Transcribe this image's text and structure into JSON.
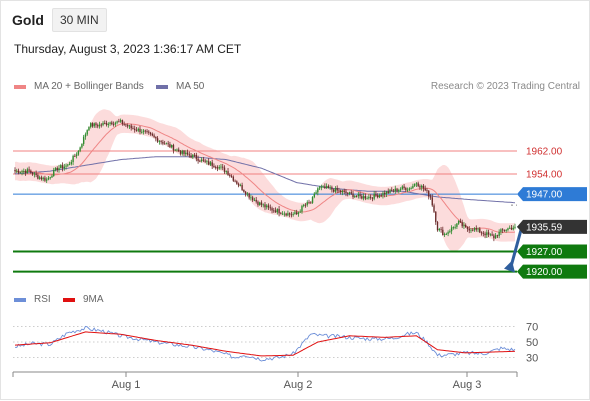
{
  "toolbar": {
    "symbol": "Gold",
    "interval": "30 MIN",
    "datetime": "Thursday, August 3, 2023 1:36:17 AM CET"
  },
  "legend": {
    "ma20": "MA 20 + Bollinger Bands",
    "ma50": "MA 50",
    "rsi": "RSI",
    "ma9": "9MA",
    "research": "Research © 2023 Trading Central"
  },
  "colors": {
    "ma20": "#ef8585",
    "bollinger_fill": "#fcd6d6",
    "ma50": "#7070a8",
    "resistance": "#f08080",
    "pivot": "#2e7bd6",
    "support": "#0f7a0f",
    "last_price": "#333333",
    "candle_up": "#2e8b2e",
    "candle_down": "#6b2a2a",
    "rsi": "#6d8fd8",
    "rsi_ma": "#e01010",
    "forecast_arrow": "#2f5e9e"
  },
  "chart_data": {
    "type": "candlestick",
    "instrument": "Gold",
    "timeframe": "30 MIN",
    "x_labels": [
      "Aug 1",
      "Aug 2",
      "Aug 3"
    ],
    "y_range": [
      1915,
      1978
    ],
    "levels": [
      {
        "label": "1962.00",
        "value": 1962.0,
        "kind": "resistance"
      },
      {
        "label": "1954.00",
        "value": 1954.0,
        "kind": "resistance"
      },
      {
        "label": "1947.00",
        "value": 1947.0,
        "kind": "pivot"
      },
      {
        "label": "1935.59",
        "value": 1935.59,
        "kind": "last"
      },
      {
        "label": "1927.00",
        "value": 1927.0,
        "kind": "support"
      },
      {
        "label": "1920.00",
        "value": 1920.0,
        "kind": "support"
      }
    ],
    "forecast": {
      "from": 1935.59,
      "to": 1920.0,
      "direction": "down"
    },
    "price_anchors": [
      {
        "x": 0,
        "p": 1955
      },
      {
        "x": 8,
        "p": 1955
      },
      {
        "x": 13,
        "p": 1953
      },
      {
        "x": 18,
        "p": 1952
      },
      {
        "x": 24,
        "p": 1956
      },
      {
        "x": 30,
        "p": 1957
      },
      {
        "x": 36,
        "p": 1962
      },
      {
        "x": 42,
        "p": 1971
      },
      {
        "x": 48,
        "p": 1971
      },
      {
        "x": 54,
        "p": 1972
      },
      {
        "x": 60,
        "p": 1972
      },
      {
        "x": 66,
        "p": 1970
      },
      {
        "x": 72,
        "p": 1969
      },
      {
        "x": 78,
        "p": 1967
      },
      {
        "x": 84,
        "p": 1965
      },
      {
        "x": 90,
        "p": 1963
      },
      {
        "x": 96,
        "p": 1961
      },
      {
        "x": 102,
        "p": 1960
      },
      {
        "x": 108,
        "p": 1958
      },
      {
        "x": 114,
        "p": 1957
      },
      {
        "x": 120,
        "p": 1955
      },
      {
        "x": 126,
        "p": 1951
      },
      {
        "x": 132,
        "p": 1947
      },
      {
        "x": 138,
        "p": 1944
      },
      {
        "x": 144,
        "p": 1942
      },
      {
        "x": 150,
        "p": 1941
      },
      {
        "x": 156,
        "p": 1940
      },
      {
        "x": 160,
        "p": 1940
      },
      {
        "x": 164,
        "p": 1943
      },
      {
        "x": 168,
        "p": 1944
      },
      {
        "x": 172,
        "p": 1949
      },
      {
        "x": 178,
        "p": 1949
      },
      {
        "x": 184,
        "p": 1948
      },
      {
        "x": 190,
        "p": 1947
      },
      {
        "x": 196,
        "p": 1946
      },
      {
        "x": 202,
        "p": 1946
      },
      {
        "x": 208,
        "p": 1947
      },
      {
        "x": 214,
        "p": 1948
      },
      {
        "x": 220,
        "p": 1949
      },
      {
        "x": 224,
        "p": 1949
      },
      {
        "x": 228,
        "p": 1951
      },
      {
        "x": 232,
        "p": 1949
      },
      {
        "x": 236,
        "p": 1946
      },
      {
        "x": 238,
        "p": 1941
      },
      {
        "x": 240,
        "p": 1935
      },
      {
        "x": 244,
        "p": 1933
      },
      {
        "x": 248,
        "p": 1935
      },
      {
        "x": 252,
        "p": 1937
      },
      {
        "x": 256,
        "p": 1935
      },
      {
        "x": 260,
        "p": 1935
      },
      {
        "x": 264,
        "p": 1934
      },
      {
        "x": 268,
        "p": 1933
      },
      {
        "x": 272,
        "p": 1932
      },
      {
        "x": 276,
        "p": 1934
      },
      {
        "x": 280,
        "p": 1935
      },
      {
        "x": 284,
        "p": 1935.59
      }
    ],
    "ma50_anchors": [
      {
        "x": 0,
        "p": 1954
      },
      {
        "x": 20,
        "p": 1955
      },
      {
        "x": 40,
        "p": 1957
      },
      {
        "x": 60,
        "p": 1959
      },
      {
        "x": 80,
        "p": 1960
      },
      {
        "x": 100,
        "p": 1960
      },
      {
        "x": 120,
        "p": 1959
      },
      {
        "x": 140,
        "p": 1956
      },
      {
        "x": 160,
        "p": 1951
      },
      {
        "x": 180,
        "p": 1949
      },
      {
        "x": 200,
        "p": 1948
      },
      {
        "x": 220,
        "p": 1948
      },
      {
        "x": 240,
        "p": 1946
      },
      {
        "x": 260,
        "p": 1945
      },
      {
        "x": 284,
        "p": 1944
      }
    ],
    "rsi": {
      "levels": [
        70,
        50,
        30
      ],
      "y_range": [
        10,
        90
      ],
      "rsi_anchors": [
        {
          "x": 0,
          "v": 44
        },
        {
          "x": 10,
          "v": 48
        },
        {
          "x": 20,
          "v": 47
        },
        {
          "x": 30,
          "v": 62
        },
        {
          "x": 40,
          "v": 68
        },
        {
          "x": 50,
          "v": 64
        },
        {
          "x": 60,
          "v": 58
        },
        {
          "x": 70,
          "v": 54
        },
        {
          "x": 80,
          "v": 50
        },
        {
          "x": 90,
          "v": 47
        },
        {
          "x": 100,
          "v": 44
        },
        {
          "x": 110,
          "v": 40
        },
        {
          "x": 120,
          "v": 34
        },
        {
          "x": 125,
          "v": 30
        },
        {
          "x": 130,
          "v": 34
        },
        {
          "x": 140,
          "v": 28
        },
        {
          "x": 150,
          "v": 30
        },
        {
          "x": 158,
          "v": 35
        },
        {
          "x": 162,
          "v": 45
        },
        {
          "x": 168,
          "v": 60
        },
        {
          "x": 175,
          "v": 58
        },
        {
          "x": 185,
          "v": 57
        },
        {
          "x": 195,
          "v": 55
        },
        {
          "x": 205,
          "v": 54
        },
        {
          "x": 215,
          "v": 55
        },
        {
          "x": 222,
          "v": 60
        },
        {
          "x": 228,
          "v": 62
        },
        {
          "x": 234,
          "v": 50
        },
        {
          "x": 240,
          "v": 33
        },
        {
          "x": 248,
          "v": 34
        },
        {
          "x": 256,
          "v": 36
        },
        {
          "x": 266,
          "v": 35
        },
        {
          "x": 276,
          "v": 42
        },
        {
          "x": 284,
          "v": 40
        }
      ],
      "ma_anchors": [
        {
          "x": 0,
          "v": 46
        },
        {
          "x": 20,
          "v": 49
        },
        {
          "x": 40,
          "v": 63
        },
        {
          "x": 60,
          "v": 60
        },
        {
          "x": 80,
          "v": 52
        },
        {
          "x": 100,
          "v": 46
        },
        {
          "x": 120,
          "v": 38
        },
        {
          "x": 140,
          "v": 32
        },
        {
          "x": 158,
          "v": 33
        },
        {
          "x": 172,
          "v": 50
        },
        {
          "x": 190,
          "v": 58
        },
        {
          "x": 210,
          "v": 56
        },
        {
          "x": 228,
          "v": 58
        },
        {
          "x": 240,
          "v": 40
        },
        {
          "x": 256,
          "v": 36
        },
        {
          "x": 284,
          "v": 38
        }
      ]
    }
  }
}
